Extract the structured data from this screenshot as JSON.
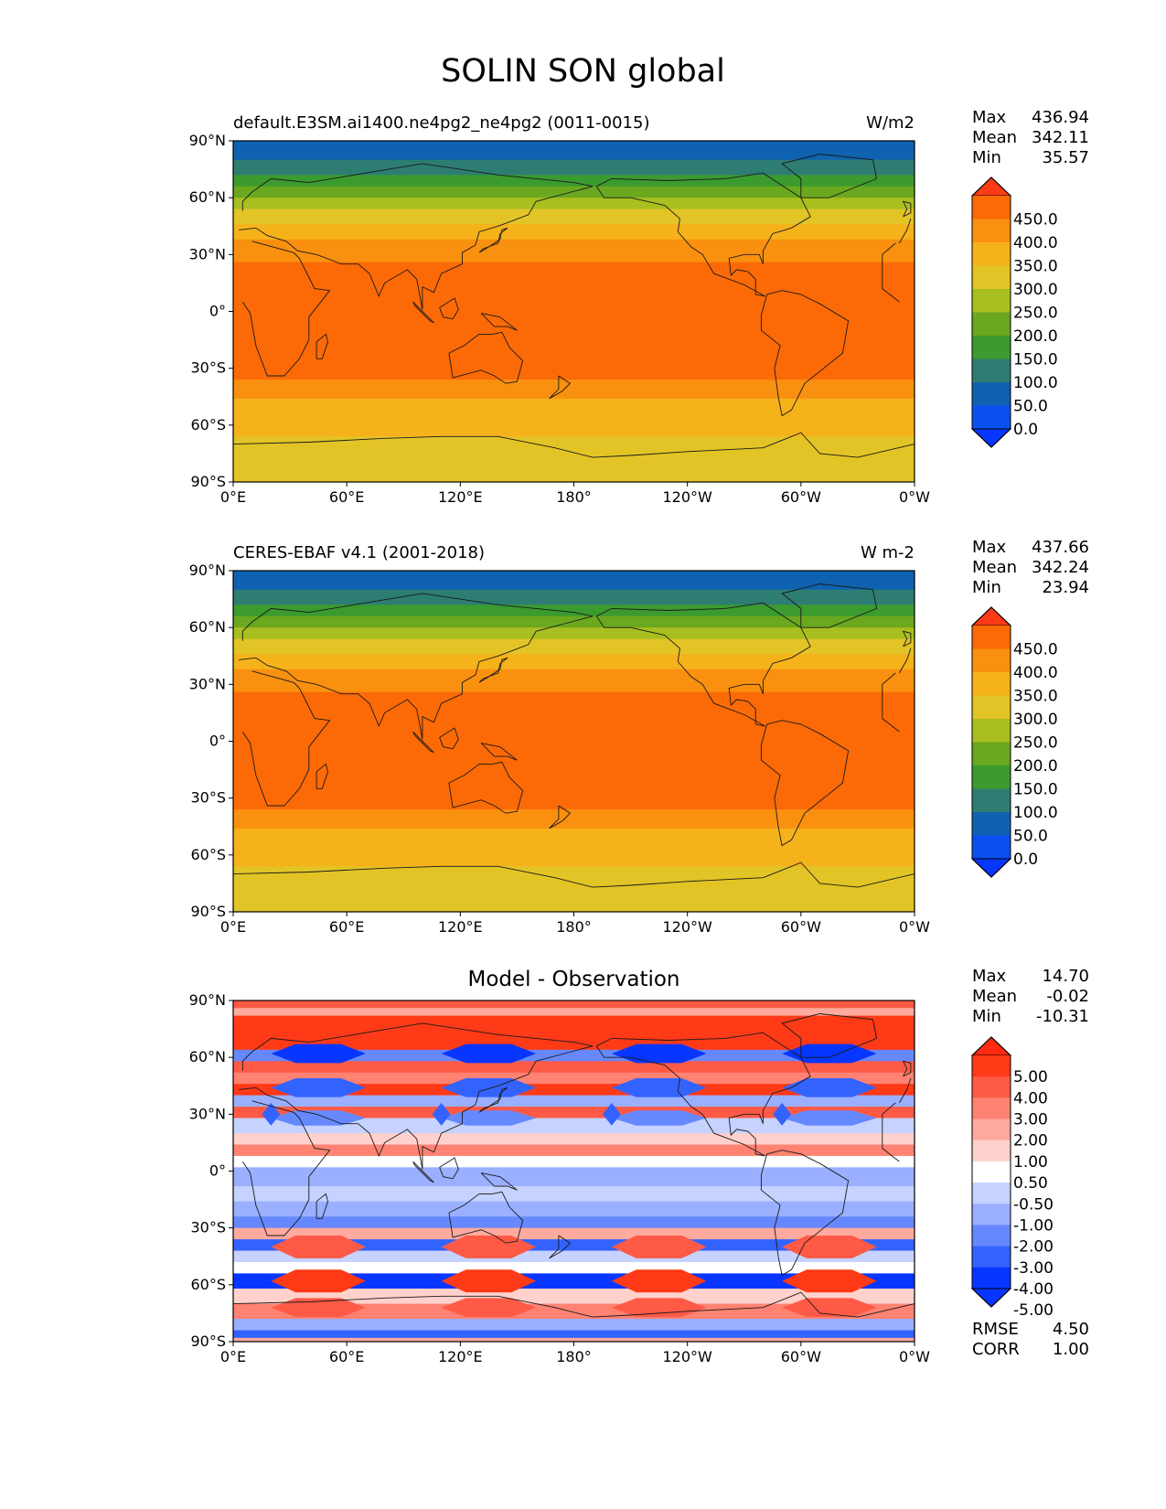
{
  "title": "SOLIN SON global",
  "x_ticks": [
    "0°E",
    "60°E",
    "120°E",
    "180°",
    "120°W",
    "60°W",
    "0°W"
  ],
  "y_ticks": [
    "90°N",
    "60°N",
    "30°N",
    "0°",
    "30°S",
    "60°S",
    "90°S"
  ],
  "panels": [
    {
      "title": "default.E3SM.ai1400.ne4pg2_ne4pg2 (0011-0015)",
      "units": "W/m2",
      "stats": [
        {
          "label": "Max",
          "value": "436.94"
        },
        {
          "label": "Mean",
          "value": "342.11"
        },
        {
          "label": "Min",
          "value": "35.57"
        }
      ],
      "colorbar_labels": [
        "450.0",
        "400.0",
        "350.0",
        "300.0",
        "250.0",
        "200.0",
        "150.0",
        "100.0",
        "50.0",
        "0.0"
      ]
    },
    {
      "title": "CERES-EBAF v4.1 (2001-2018)",
      "units": "W m-2",
      "stats": [
        {
          "label": "Max",
          "value": "437.66"
        },
        {
          "label": "Mean",
          "value": "342.24"
        },
        {
          "label": "Min",
          "value": "23.94"
        }
      ],
      "colorbar_labels": [
        "450.0",
        "400.0",
        "350.0",
        "300.0",
        "250.0",
        "200.0",
        "150.0",
        "100.0",
        "50.0",
        "0.0"
      ]
    },
    {
      "title": "Model - Observation",
      "units": "",
      "stats": [
        {
          "label": "Max",
          "value": "14.70"
        },
        {
          "label": "Mean",
          "value": "-0.02"
        },
        {
          "label": "Min",
          "value": "-10.31"
        }
      ],
      "colorbar_labels": [
        "5.00",
        "4.00",
        "3.00",
        "2.00",
        "1.00",
        "0.50",
        "-0.50",
        "-1.00",
        "-2.00",
        "-3.00",
        "-4.00",
        "-5.00"
      ],
      "metrics": [
        {
          "label": "RMSE",
          "value": "4.50"
        },
        {
          "label": "CORR",
          "value": "1.00"
        }
      ]
    }
  ],
  "colors": {
    "sequential": [
      "#0a50f0",
      "#0e62b0",
      "#2e7d72",
      "#3b9b2e",
      "#6aa81f",
      "#a8bf1f",
      "#e3c426",
      "#f6b21b",
      "#f9900f",
      "#fb6a07",
      "#ff3a17"
    ],
    "seq_low_extend": "#0736ff",
    "seq_high_extend": "#ff3a17",
    "diverging": [
      "#0636ff",
      "#3363ff",
      "#6688ff",
      "#9aafff",
      "#c6d2ff",
      "#ffffff",
      "#ffd1cc",
      "#ffaa9f",
      "#ff8272",
      "#ff5a46",
      "#ff3a17"
    ],
    "div_low_extend": "#0636ff",
    "div_high_extend": "#ff2a10",
    "coast": "#1a1a1a"
  }
}
